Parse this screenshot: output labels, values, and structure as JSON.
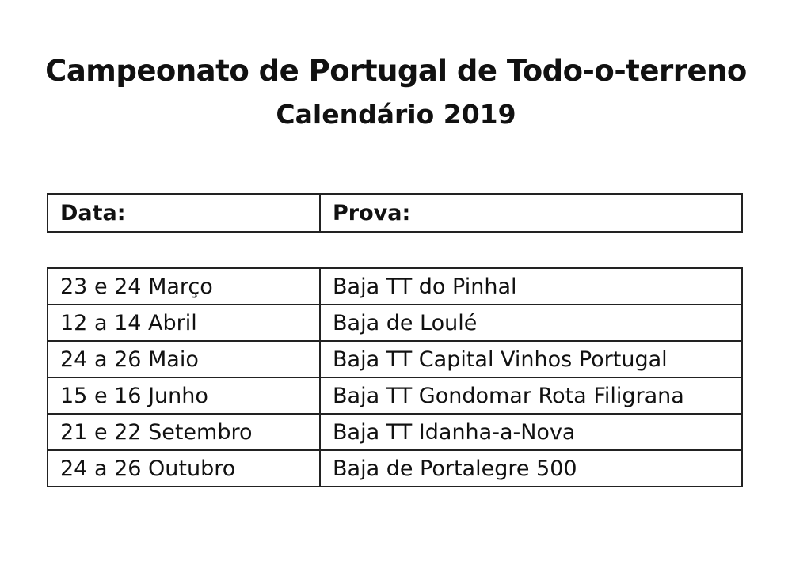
{
  "header": {
    "title": "Campeonato de Portugal de Todo-o-terreno",
    "subtitle": "Calendário 2019"
  },
  "table": {
    "columns": [
      "Data:",
      "Prova:"
    ],
    "rows": [
      [
        "23 e 24 Março",
        "Baja TT do Pinhal"
      ],
      [
        "12 a 14 Abril",
        "Baja de Loulé"
      ],
      [
        "24 a 26 Maio",
        "Baja TT Capital Vinhos Portugal"
      ],
      [
        "15 e 16 Junho",
        "Baja TT Gondomar Rota Filigrana"
      ],
      [
        "21 e 22 Setembro",
        "Baja TT Idanha-a-Nova"
      ],
      [
        "24 a 26 Outubro",
        "Baja de Portalegre 500"
      ]
    ]
  }
}
